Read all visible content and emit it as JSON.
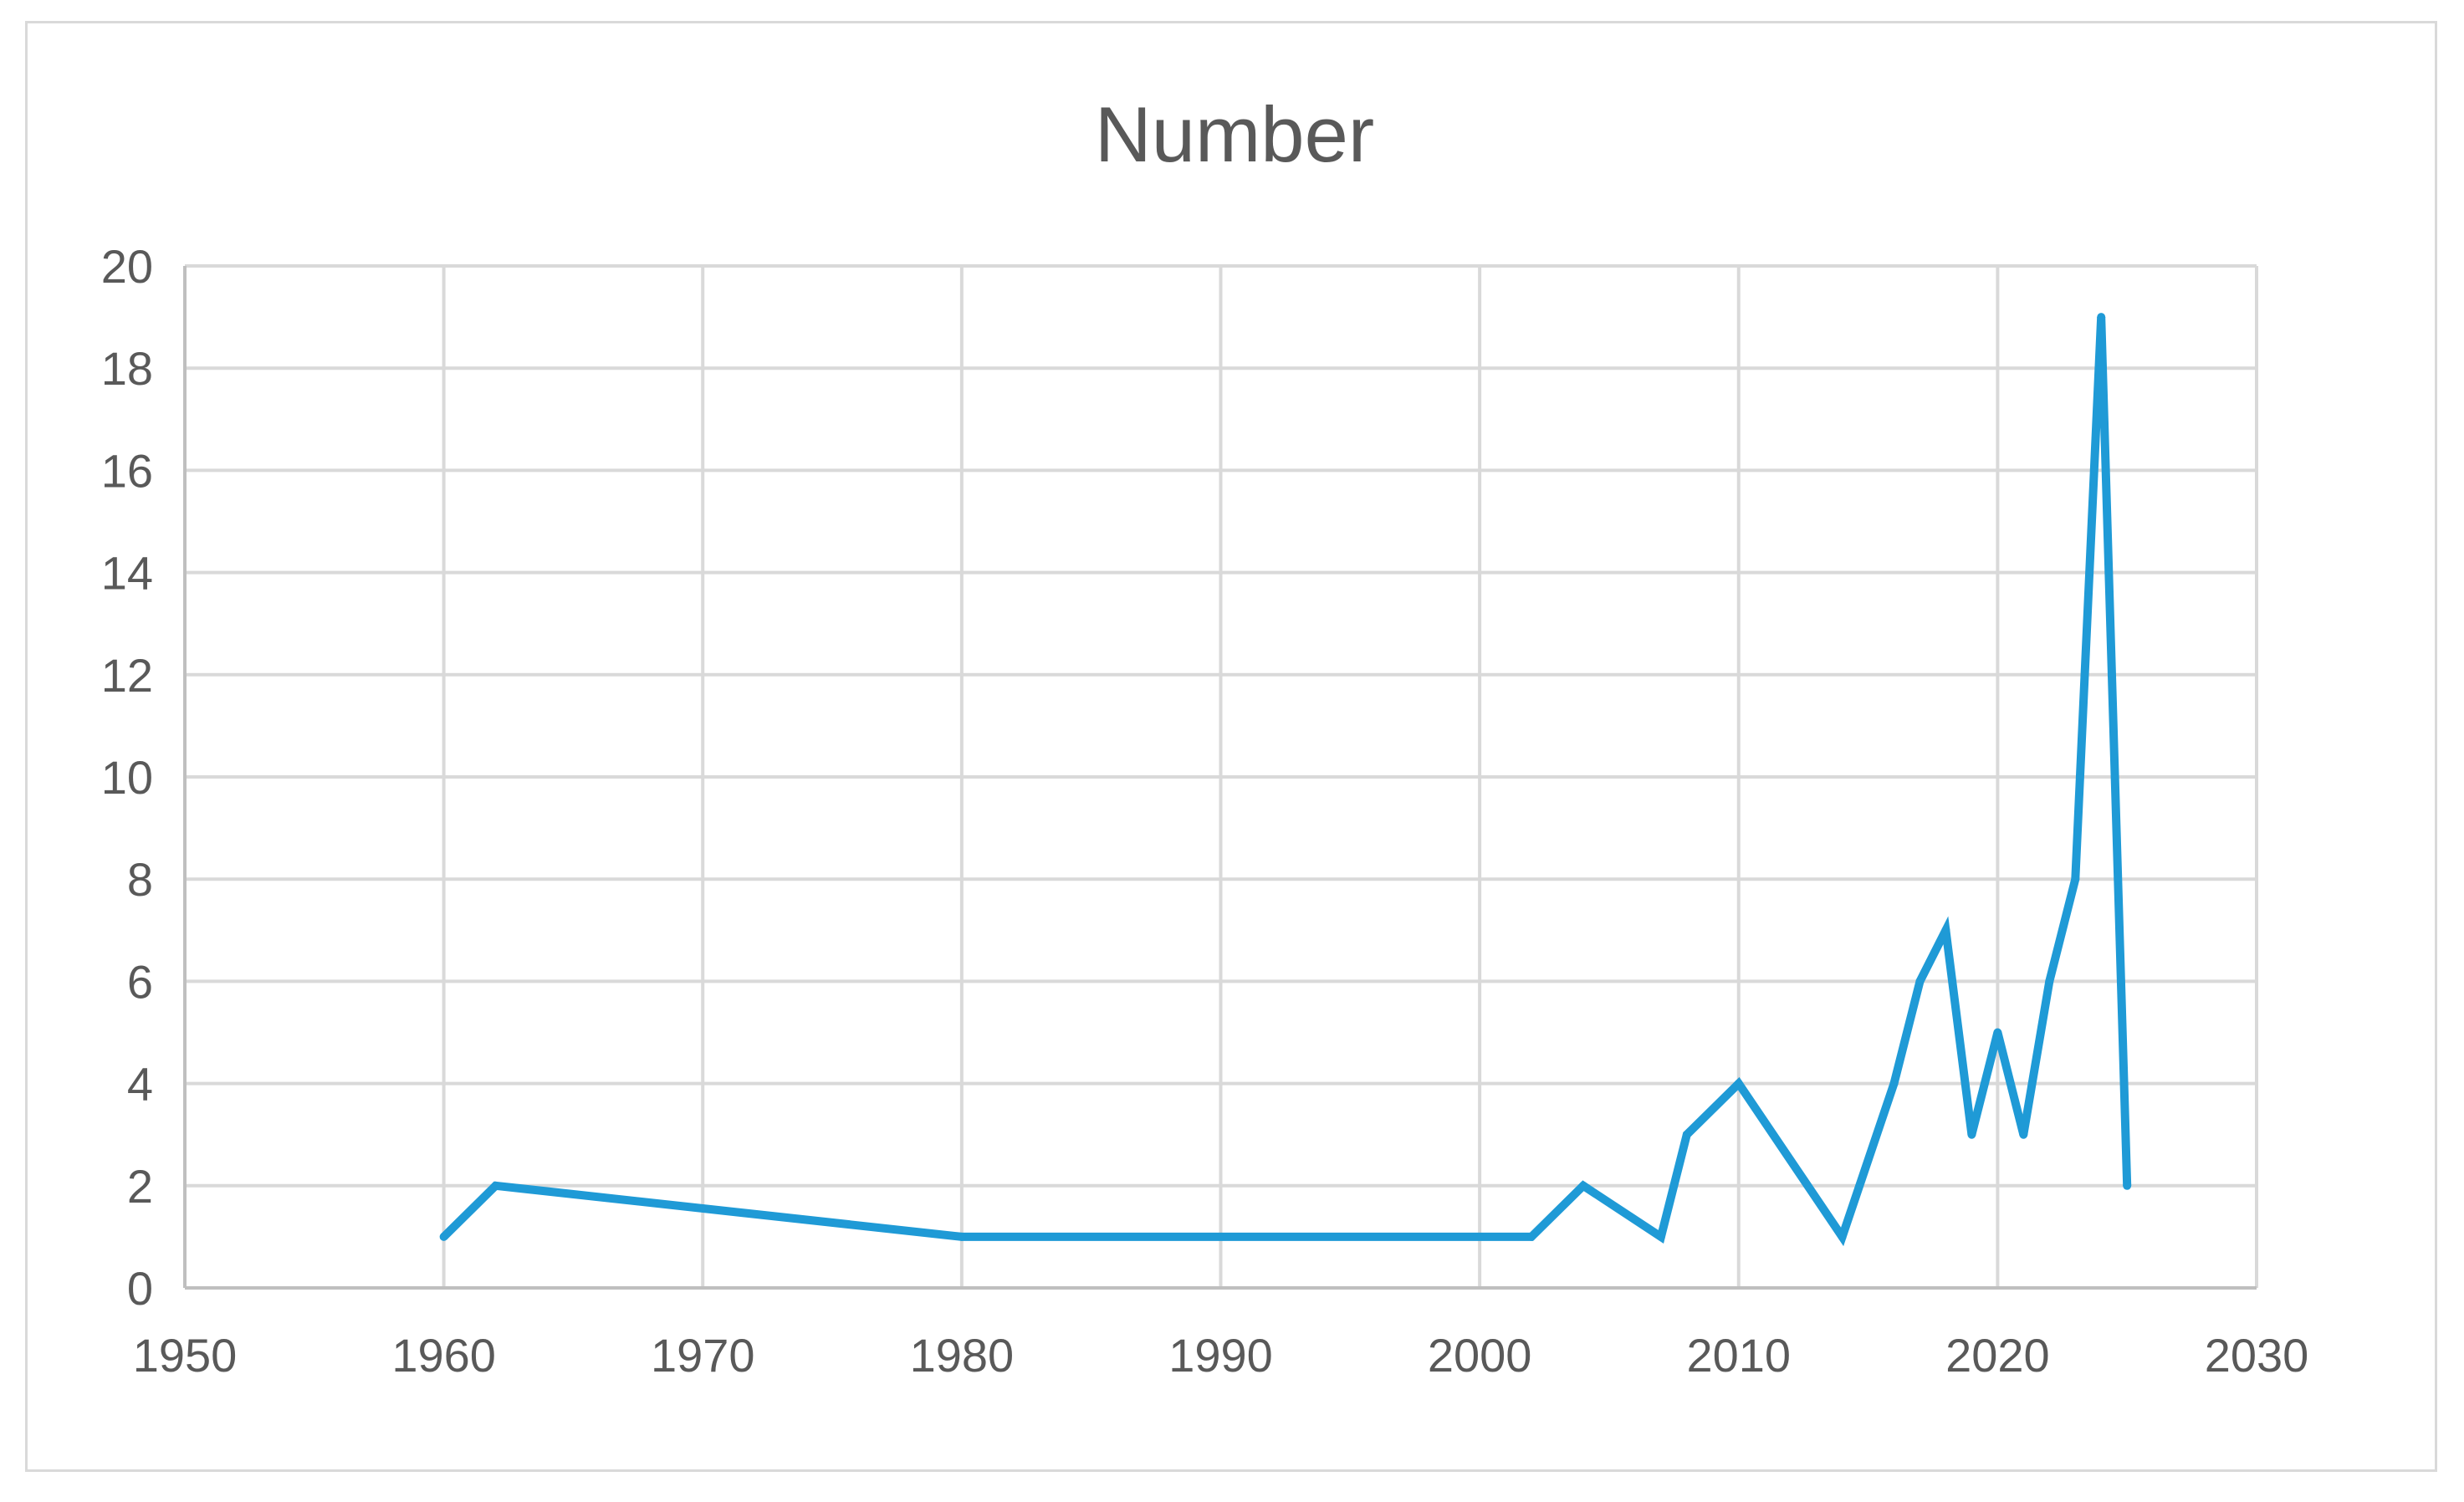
{
  "chart_data": {
    "type": "line",
    "title": "Number",
    "xlabel": "",
    "ylabel": "",
    "xlim": [
      1950,
      2030
    ],
    "ylim": [
      0,
      20
    ],
    "x_ticks": [
      1950,
      1960,
      1970,
      1980,
      1990,
      2000,
      2010,
      2020,
      2030
    ],
    "y_ticks": [
      0,
      2,
      4,
      6,
      8,
      10,
      12,
      14,
      16,
      18,
      20
    ],
    "grid": true,
    "legend": "none",
    "series": [
      {
        "color": "#1f9ad6",
        "x": [
          1960,
          1962,
          1980,
          2002,
          2004,
          2007,
          2008,
          2010,
          2014,
          2016,
          2017,
          2018,
          2019,
          2020,
          2021,
          2022,
          2023,
          2024,
          2025
        ],
        "y": [
          1,
          2,
          1,
          1,
          2,
          1,
          3,
          4,
          1,
          4,
          6,
          7,
          3,
          5,
          3,
          6,
          8,
          19,
          2
        ]
      }
    ]
  }
}
